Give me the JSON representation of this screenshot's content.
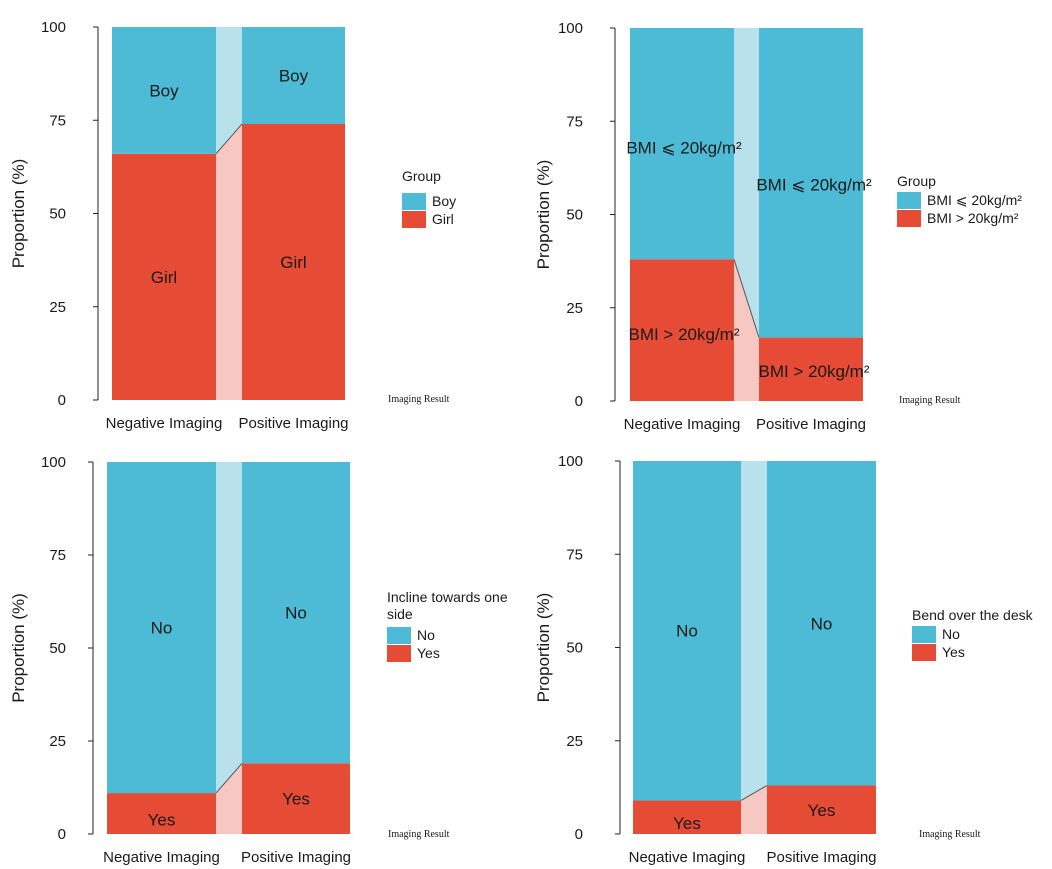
{
  "chart_data": [
    {
      "type": "bar",
      "stacked": true,
      "categories": [
        "Negative Imaging",
        "Positive Imaging"
      ],
      "series": [
        {
          "name": "Girl",
          "values": [
            66,
            74
          ],
          "labels": [
            "Girl",
            "Girl"
          ]
        },
        {
          "name": "Boy",
          "values": [
            34,
            26
          ],
          "labels": [
            "Boy",
            "Boy"
          ]
        }
      ],
      "ylabel": "Proportion (%)",
      "xlabel": "Imaging Result",
      "ylim": [
        0,
        100
      ],
      "yticks": [
        0,
        25,
        50,
        75,
        100
      ],
      "legend": {
        "title": "Group",
        "title_lines": [
          "Group"
        ],
        "entries": [
          "Boy",
          "Girl"
        ],
        "position": "right"
      },
      "colors": {
        "top": "#4DBBD5",
        "bottom": "#E64B35",
        "top_light": "#B8E1EC",
        "bottom_light": "#F7C8C2"
      }
    },
    {
      "type": "bar",
      "stacked": true,
      "categories": [
        "Negative Imaging",
        "Positive Imaging"
      ],
      "series": [
        {
          "name": "BMI > 20kg/m²",
          "values": [
            38,
            17
          ],
          "labels": [
            "BMI > 20kg/m²",
            "BMI > 20kg/m²"
          ]
        },
        {
          "name": "BMI ⩽ 20kg/m²",
          "values": [
            62,
            83
          ],
          "labels": [
            "BMI ⩽ 20kg/m²",
            "BMI ⩽ 20kg/m²"
          ]
        }
      ],
      "ylabel": "Proportion (%)",
      "xlabel": "Imaging Result",
      "ylim": [
        0,
        100
      ],
      "yticks": [
        0,
        25,
        50,
        75,
        100
      ],
      "legend": {
        "title": "Group",
        "title_lines": [
          "Group"
        ],
        "entries": [
          "BMI ⩽ 20kg/m²",
          "BMI > 20kg/m²"
        ],
        "position": "right"
      },
      "colors": {
        "top": "#4DBBD5",
        "bottom": "#E64B35",
        "top_light": "#B8E1EC",
        "bottom_light": "#F7C8C2"
      }
    },
    {
      "type": "bar",
      "stacked": true,
      "categories": [
        "Negative Imaging",
        "Positive Imaging"
      ],
      "series": [
        {
          "name": "Yes",
          "values": [
            11,
            19
          ],
          "labels": [
            "Yes",
            "Yes"
          ]
        },
        {
          "name": "No",
          "values": [
            89,
            81
          ],
          "labels": [
            "No",
            "No"
          ]
        }
      ],
      "ylabel": "Proportion (%)",
      "xlabel": "Imaging Result",
      "ylim": [
        0,
        100
      ],
      "yticks": [
        0,
        25,
        50,
        75,
        100
      ],
      "legend": {
        "title": "Incline towards one side",
        "title_lines": [
          "Incline towards one",
          "side"
        ],
        "entries": [
          "No",
          "Yes"
        ],
        "position": "right"
      },
      "colors": {
        "top": "#4DBBD5",
        "bottom": "#E64B35",
        "top_light": "#B8E1EC",
        "bottom_light": "#F7C8C2"
      }
    },
    {
      "type": "bar",
      "stacked": true,
      "categories": [
        "Negative Imaging",
        "Positive Imaging"
      ],
      "series": [
        {
          "name": "Yes",
          "values": [
            9,
            13
          ],
          "labels": [
            "Yes",
            "Yes"
          ]
        },
        {
          "name": "No",
          "values": [
            91,
            87
          ],
          "labels": [
            "No",
            "No"
          ]
        }
      ],
      "ylabel": "Proportion (%)",
      "xlabel": "Imaging Result",
      "ylim": [
        0,
        100
      ],
      "yticks": [
        0,
        25,
        50,
        75,
        100
      ],
      "legend": {
        "title": "Bend over the desk",
        "title_lines": [
          "Bend over the desk"
        ],
        "entries": [
          "No",
          "Yes"
        ],
        "position": "right"
      },
      "colors": {
        "top": "#4DBBD5",
        "bottom": "#E64B35",
        "top_light": "#B8E1EC",
        "bottom_light": "#F7C8C2"
      }
    }
  ]
}
